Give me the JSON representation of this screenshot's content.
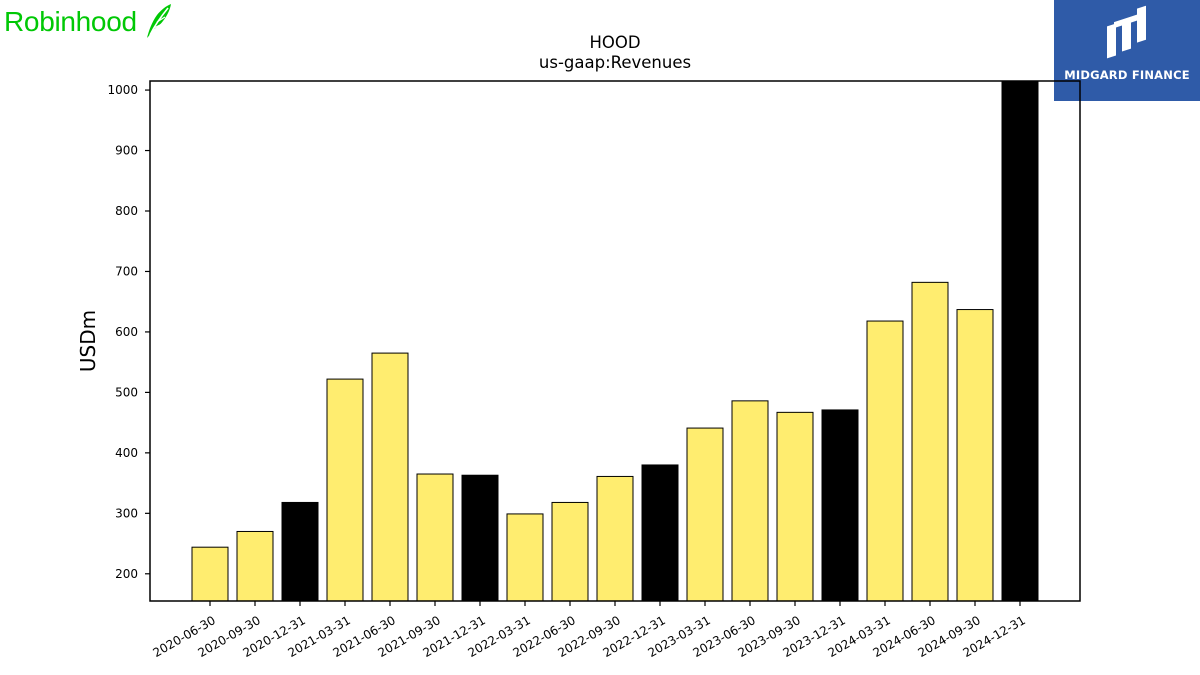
{
  "header": {
    "brand_name": "Robinhood",
    "brand_color": "#00c805",
    "brand_icon": "feather-icon",
    "partner_name": "MIDGARD FINANCE",
    "partner_color": "#2f5ba8",
    "partner_icon": "midgard-logo-icon"
  },
  "chart_data": {
    "type": "bar",
    "title": "HOOD",
    "subtitle": "us-gaap:Revenues",
    "xlabel": "",
    "ylabel": "USDm",
    "ylim": [
      155,
      1015
    ],
    "yticks": [
      200,
      300,
      400,
      500,
      600,
      700,
      800,
      900,
      1000
    ],
    "grid": false,
    "legend": "none",
    "colors": {
      "quarter": "#ffed6f",
      "year_end": "#000000",
      "edge": "#000000"
    },
    "categories": [
      "2020-06-30",
      "2020-09-30",
      "2020-12-31",
      "2021-03-31",
      "2021-06-30",
      "2021-09-30",
      "2021-12-31",
      "2022-03-31",
      "2022-06-30",
      "2022-09-30",
      "2022-12-31",
      "2023-03-31",
      "2023-06-30",
      "2023-09-30",
      "2023-12-31",
      "2024-03-31",
      "2024-06-30",
      "2024-09-30",
      "2024-12-31"
    ],
    "values": [
      244,
      270,
      318,
      522,
      565,
      365,
      363,
      299,
      318,
      361,
      380,
      441,
      486,
      467,
      471,
      618,
      682,
      637,
      1014
    ],
    "highlight": [
      false,
      false,
      true,
      false,
      false,
      false,
      true,
      false,
      false,
      false,
      true,
      false,
      false,
      false,
      true,
      false,
      false,
      false,
      true
    ]
  }
}
